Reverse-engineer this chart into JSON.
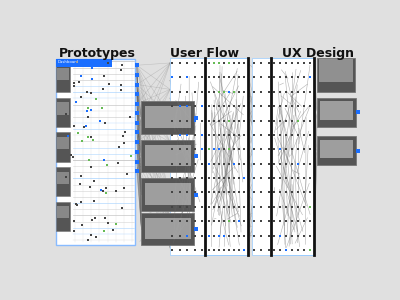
{
  "title_prototypes": "Prototypes",
  "title_userflow": "User Flow",
  "title_uxdesign": "UX Design",
  "bg_color": "#e0e0e0",
  "title_fontsize": 9,
  "title_color": "#111111",
  "dark_box_color": "#555555",
  "blue_color": "#1a6eff",
  "line_color_gray": "#888888",
  "line_color_dark": "#444444",
  "node_color": "#444444",
  "green_node": "#66bb55",
  "white": "#ffffff",
  "light_blue_border": "#99ccff"
}
